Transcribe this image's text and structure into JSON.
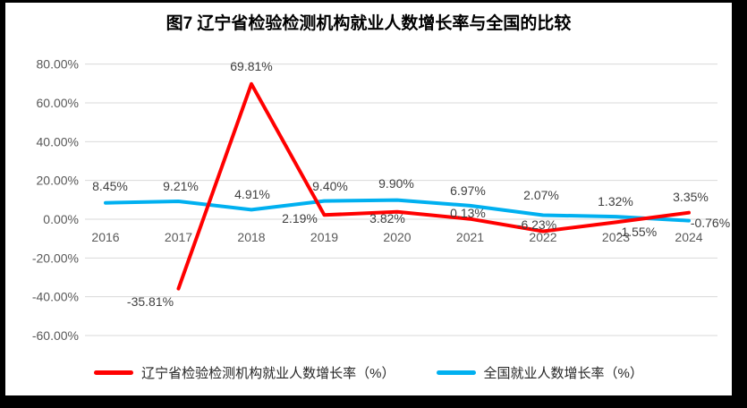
{
  "title": "图7  辽宁省检验检测机构就业人数增长率与全国的比较",
  "chart_data": {
    "type": "line",
    "title": "图7  辽宁省检验检测机构就业人数增长率与全国的比较",
    "categories": [
      "2016",
      "2017",
      "2018",
      "2019",
      "2020",
      "2021",
      "2022",
      "2023",
      "2024"
    ],
    "series": [
      {
        "name": "辽宁省检验检测机构就业人数增长率（%）",
        "color": "#FF0000",
        "values": [
          null,
          -35.81,
          69.81,
          2.19,
          3.82,
          0.13,
          -6.23,
          -1.55,
          3.35
        ],
        "labels": [
          "",
          "-35.81%",
          "69.81%",
          "2.19%",
          "3.82%",
          "0.13%",
          "-6.23%",
          "-1.55%",
          "3.35%"
        ]
      },
      {
        "name": "全国就业人数增长率（%）",
        "color": "#00B0F0",
        "values": [
          8.45,
          9.21,
          4.91,
          9.4,
          9.9,
          6.97,
          2.07,
          1.32,
          -0.76
        ],
        "labels": [
          "8.45%",
          "9.21%",
          "4.91%",
          "9.40%",
          "9.90%",
          "6.97%",
          "2.07%",
          "1.32%",
          "-0.76%"
        ]
      }
    ],
    "y_ticks": [
      {
        "label": "80.00%",
        "value": 80
      },
      {
        "label": "60.00%",
        "value": 60
      },
      {
        "label": "40.00%",
        "value": 40
      },
      {
        "label": "20.00%",
        "value": 20
      },
      {
        "label": "0.00%",
        "value": 0
      },
      {
        "label": "-20.00%",
        "value": -20
      },
      {
        "label": "-40.00%",
        "value": -40
      },
      {
        "label": "-60.00%",
        "value": -60
      }
    ],
    "ylim": [
      -60,
      80
    ],
    "xlabel": "",
    "ylabel": "",
    "grid": true,
    "legend_position": "bottom"
  },
  "legend": {
    "items": [
      {
        "label": "辽宁省检验检测机构就业人数增长率（%）",
        "color": "#FF0000"
      },
      {
        "label": "全国就业人数增长率（%）",
        "color": "#00B0F0"
      }
    ]
  },
  "colors": {
    "red_series": "#FF0000",
    "blue_series": "#00B0F0",
    "gridline": "#D9D9D9",
    "axis_text": "#595959",
    "data_label_text": "#3F3F3F",
    "chart_background": "#FFFFFF",
    "page_border": "#000000"
  }
}
